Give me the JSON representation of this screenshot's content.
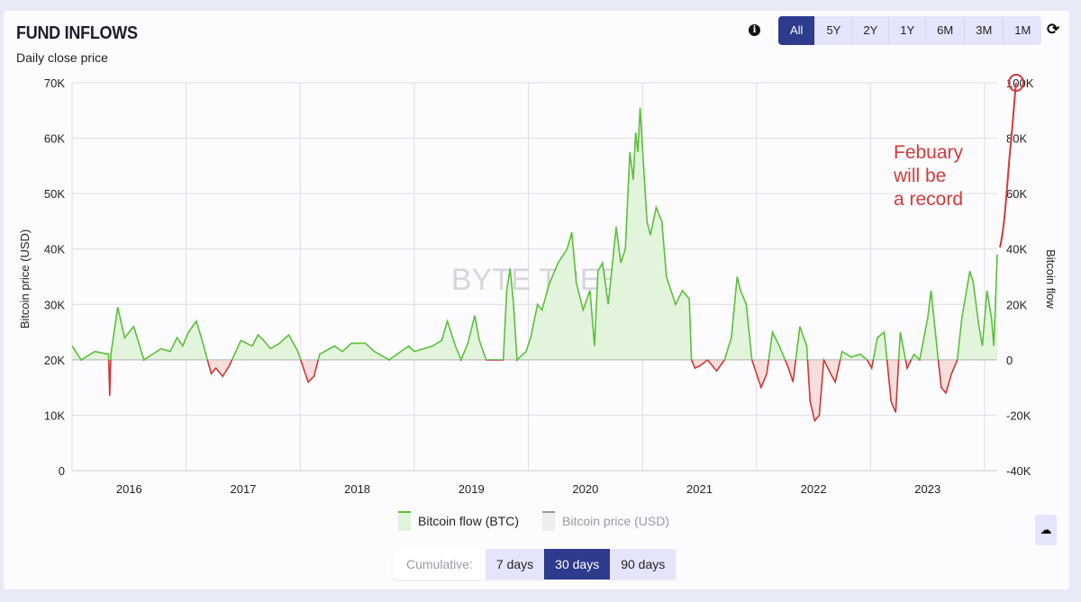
{
  "header": {
    "title": "FUND INFLOWS",
    "subtitle": "Daily close price",
    "info_icon": "info-icon",
    "refresh_icon": "refresh-icon"
  },
  "ranges": [
    {
      "label": "All",
      "active": true
    },
    {
      "label": "5Y"
    },
    {
      "label": "2Y"
    },
    {
      "label": "1Y"
    },
    {
      "label": "6M"
    },
    {
      "label": "3M"
    },
    {
      "label": "1M"
    }
  ],
  "legend": [
    {
      "label": "Bitcoin flow (BTC)",
      "color": "#5cbf3a"
    },
    {
      "label": "Bitcoin price (USD)",
      "color": "#999999"
    }
  ],
  "cumulative": {
    "label": "Cumulative:",
    "options": [
      {
        "label": "7 days"
      },
      {
        "label": "30 days",
        "active": true
      },
      {
        "label": "90 days"
      }
    ]
  },
  "download_icon": "cloud-download-icon",
  "watermark": "BYTE TREE",
  "annotation": {
    "text_lines": [
      "Febuary",
      "will be",
      "a record"
    ],
    "color": "#d23a3a"
  },
  "chart_data": {
    "type": "area",
    "title": "FUND INFLOWS",
    "subtitle": "Daily close price",
    "ylabel_left": "Bitcoin price (USD)",
    "ylabel_right": "Bitcoin flow",
    "xlim": [
      2016.0,
      2024.11
    ],
    "ylim_left": [
      0,
      70000
    ],
    "ylim_right": [
      -40000,
      100000
    ],
    "left_ticks": [
      "0",
      "10K",
      "20K",
      "30K",
      "40K",
      "50K",
      "60K",
      "70K"
    ],
    "right_ticks": [
      "-40K",
      "-20K",
      "0",
      "20K",
      "40K",
      "60K",
      "80K",
      "100K"
    ],
    "x_ticks": [
      "2016",
      "2017",
      "2018",
      "2019",
      "2020",
      "2021",
      "2022",
      "2023"
    ],
    "positive_color": "#5cbf3a",
    "negative_color": "#c83a35",
    "series": [
      {
        "name": "Bitcoin flow (BTC)",
        "axis": "right",
        "unit": "K BTC",
        "points": [
          [
            2016.0,
            5
          ],
          [
            2016.08,
            0
          ],
          [
            2016.2,
            3
          ],
          [
            2016.32,
            2
          ],
          [
            2016.33,
            -13
          ],
          [
            2016.34,
            2
          ],
          [
            2016.4,
            19
          ],
          [
            2016.46,
            8
          ],
          [
            2016.54,
            12
          ],
          [
            2016.63,
            0
          ],
          [
            2016.78,
            4
          ],
          [
            2016.86,
            3
          ],
          [
            2016.92,
            8
          ],
          [
            2016.97,
            5
          ],
          [
            2017.02,
            10
          ],
          [
            2017.09,
            14
          ],
          [
            2017.14,
            7
          ],
          [
            2017.18,
            1
          ],
          [
            2017.22,
            -5
          ],
          [
            2017.26,
            -3
          ],
          [
            2017.32,
            -6
          ],
          [
            2017.38,
            -2
          ],
          [
            2017.48,
            7
          ],
          [
            2017.58,
            5
          ],
          [
            2017.63,
            9
          ],
          [
            2017.68,
            7
          ],
          [
            2017.74,
            4
          ],
          [
            2017.82,
            6
          ],
          [
            2017.9,
            9
          ],
          [
            2017.98,
            3
          ],
          [
            2018.02,
            -2
          ],
          [
            2018.07,
            -8
          ],
          [
            2018.12,
            -6
          ],
          [
            2018.17,
            2
          ],
          [
            2018.3,
            5
          ],
          [
            2018.37,
            3
          ],
          [
            2018.45,
            6
          ],
          [
            2018.57,
            6
          ],
          [
            2018.65,
            3
          ],
          [
            2018.78,
            0
          ],
          [
            2018.95,
            5
          ],
          [
            2019.0,
            3
          ],
          [
            2019.16,
            5
          ],
          [
            2019.24,
            7
          ],
          [
            2019.29,
            14
          ],
          [
            2019.36,
            5
          ],
          [
            2019.41,
            0
          ],
          [
            2019.47,
            6
          ],
          [
            2019.53,
            16
          ],
          [
            2019.57,
            7
          ],
          [
            2019.63,
            0
          ],
          [
            2019.78,
            0
          ],
          [
            2019.81,
            25
          ],
          [
            2019.84,
            33
          ],
          [
            2019.87,
            20
          ],
          [
            2019.9,
            0
          ],
          [
            2019.98,
            3
          ],
          [
            2020.02,
            8
          ],
          [
            2020.08,
            20
          ],
          [
            2020.12,
            18
          ],
          [
            2020.18,
            27
          ],
          [
            2020.26,
            35
          ],
          [
            2020.34,
            40
          ],
          [
            2020.38,
            46
          ],
          [
            2020.42,
            28
          ],
          [
            2020.48,
            18
          ],
          [
            2020.54,
            25
          ],
          [
            2020.58,
            5
          ],
          [
            2020.61,
            32
          ],
          [
            2020.65,
            35
          ],
          [
            2020.7,
            20
          ],
          [
            2020.77,
            48
          ],
          [
            2020.81,
            35
          ],
          [
            2020.85,
            40
          ],
          [
            2020.89,
            75
          ],
          [
            2020.92,
            65
          ],
          [
            2020.94,
            82
          ],
          [
            2020.96,
            75
          ],
          [
            2020.98,
            91
          ],
          [
            2021.01,
            70
          ],
          [
            2021.04,
            50
          ],
          [
            2021.07,
            45
          ],
          [
            2021.12,
            55
          ],
          [
            2021.17,
            50
          ],
          [
            2021.21,
            30
          ],
          [
            2021.29,
            20
          ],
          [
            2021.35,
            25
          ],
          [
            2021.41,
            22
          ],
          [
            2021.43,
            0
          ],
          [
            2021.46,
            -3
          ],
          [
            2021.51,
            -2
          ],
          [
            2021.57,
            0
          ],
          [
            2021.65,
            -4
          ],
          [
            2021.72,
            0
          ],
          [
            2021.78,
            8
          ],
          [
            2021.83,
            30
          ],
          [
            2021.86,
            25
          ],
          [
            2021.91,
            20
          ],
          [
            2021.96,
            0
          ],
          [
            2022.04,
            -10
          ],
          [
            2022.09,
            -5
          ],
          [
            2022.14,
            10
          ],
          [
            2022.2,
            5
          ],
          [
            2022.28,
            -3
          ],
          [
            2022.32,
            -8
          ],
          [
            2022.38,
            12
          ],
          [
            2022.44,
            5
          ],
          [
            2022.47,
            -15
          ],
          [
            2022.51,
            -22
          ],
          [
            2022.55,
            -20
          ],
          [
            2022.59,
            0
          ],
          [
            2022.65,
            -5
          ],
          [
            2022.69,
            -8
          ],
          [
            2022.75,
            3
          ],
          [
            2022.83,
            1
          ],
          [
            2022.91,
            2
          ],
          [
            2022.97,
            0
          ],
          [
            2023.01,
            -3
          ],
          [
            2023.06,
            8
          ],
          [
            2023.12,
            10
          ],
          [
            2023.18,
            -15
          ],
          [
            2023.22,
            -19
          ],
          [
            2023.26,
            10
          ],
          [
            2023.32,
            -3
          ],
          [
            2023.38,
            2
          ],
          [
            2023.43,
            0
          ],
          [
            2023.5,
            15
          ],
          [
            2023.53,
            25
          ],
          [
            2023.58,
            5
          ],
          [
            2023.62,
            -10
          ],
          [
            2023.66,
            -12
          ],
          [
            2023.71,
            -5
          ],
          [
            2023.76,
            0
          ],
          [
            2023.8,
            15
          ],
          [
            2023.87,
            32
          ],
          [
            2023.9,
            28
          ],
          [
            2023.95,
            12
          ],
          [
            2023.98,
            5
          ],
          [
            2024.02,
            25
          ],
          [
            2024.06,
            15
          ],
          [
            2024.08,
            5
          ],
          [
            2024.11,
            38
          ]
        ]
      }
    ]
  }
}
